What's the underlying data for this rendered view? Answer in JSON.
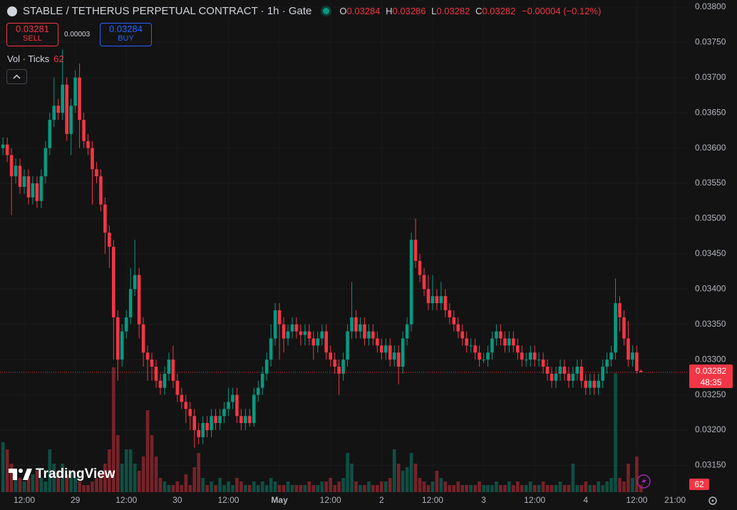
{
  "header": {
    "title": "STABLE / TETHERUS PERPETUAL CONTRACT · 1h · Gate",
    "ohlc_labels": [
      "O",
      "H",
      "L",
      "C"
    ],
    "change": "−0.00004 (−0.12%)",
    "sell_price": 0.03281,
    "sell_label": "SELL",
    "spread": 3e-05,
    "buy_price": 0.03284,
    "buy_label": "BUY",
    "indicator": "Vol · Ticks",
    "countdown": "48:35",
    "logo": "TradingView"
  },
  "chart_data": {
    "type": "candlestick",
    "up_color": "#089981",
    "down_color": "#f23645",
    "grid": true,
    "xlim": [
      -0.7,
      161.0
    ],
    "xticks": [
      {
        "value": 5,
        "label": "12:00"
      },
      {
        "value": 17,
        "label": "29"
      },
      {
        "value": 29,
        "label": "12:00"
      },
      {
        "value": 41,
        "label": "30"
      },
      {
        "value": 53,
        "label": "12:00"
      },
      {
        "value": 65,
        "label": "May"
      },
      {
        "value": 77,
        "label": "12:00"
      },
      {
        "value": 89,
        "label": "2"
      },
      {
        "value": 101,
        "label": "12:00"
      },
      {
        "value": 113,
        "label": "3"
      },
      {
        "value": 125,
        "label": "12:00"
      },
      {
        "value": 137,
        "label": "4"
      },
      {
        "value": 149,
        "label": "12:00"
      },
      {
        "value": 158,
        "label": "21:00"
      }
    ],
    "ylim": [
      0.03112,
      0.0381
    ],
    "yticks": [
      {
        "value": 0.038,
        "label": "0.03800"
      },
      {
        "value": 0.0375,
        "label": "0.03750"
      },
      {
        "value": 0.037,
        "label": "0.03700"
      },
      {
        "value": 0.0365,
        "label": "0.03650"
      },
      {
        "value": 0.036,
        "label": "0.03600"
      },
      {
        "value": 0.0355,
        "label": "0.03550"
      },
      {
        "value": 0.035,
        "label": "0.03500"
      },
      {
        "value": 0.0345,
        "label": "0.03450"
      },
      {
        "value": 0.034,
        "label": "0.03400"
      },
      {
        "value": 0.0335,
        "label": "0.03350"
      },
      {
        "value": 0.033,
        "label": "0.03300"
      },
      {
        "value": 0.0325,
        "label": "0.03250"
      },
      {
        "value": 0.032,
        "label": "0.03200"
      },
      {
        "value": 0.0315,
        "label": "0.03150"
      }
    ],
    "open": [
      0.036,
      0.03605,
      0.0359,
      0.0356,
      0.03575,
      0.03545,
      0.0356,
      0.0353,
      0.0355,
      0.03525,
      0.0356,
      0.036,
      0.0364,
      0.0366,
      0.0365,
      0.0369,
      0.0362,
      0.0366,
      0.037,
      0.0364,
      0.0361,
      0.036,
      0.0357,
      0.0356,
      0.0352,
      0.0348,
      0.0346,
      0.0336,
      0.033,
      0.0334,
      0.0336,
      0.034,
      0.0342,
      0.0335,
      0.0331,
      0.033,
      0.0329,
      0.0327,
      0.0326,
      0.0328,
      0.033,
      0.0327,
      0.0325,
      0.0324,
      0.0323,
      0.0322,
      0.032,
      0.0319,
      0.0321,
      0.032,
      0.0322,
      0.0321,
      0.0322,
      0.0323,
      0.0324,
      0.0325,
      0.0322,
      0.0321,
      0.0322,
      0.0321,
      0.0325,
      0.0326,
      0.0328,
      0.033,
      0.0333,
      0.0337,
      0.0335,
      0.0333,
      0.0334,
      0.0335,
      0.0334,
      0.03335,
      0.0334,
      0.0333,
      0.0332,
      0.0333,
      0.0334,
      0.0331,
      0.033,
      0.0329,
      0.0328,
      0.033,
      0.0334,
      0.0336,
      0.0334,
      0.0335,
      0.0333,
      0.0334,
      0.0333,
      0.0332,
      0.0331,
      0.0332,
      0.033,
      0.0331,
      0.0329,
      0.0333,
      0.0335,
      0.0347,
      0.0344,
      0.0342,
      0.034,
      0.0338,
      0.0339,
      0.0338,
      0.0339,
      0.0337,
      0.0336,
      0.0335,
      0.0334,
      0.0333,
      0.0332,
      0.0332,
      0.0331,
      0.033,
      0.033,
      0.0331,
      0.0333,
      0.0334,
      0.0333,
      0.0332,
      0.0333,
      0.0332,
      0.0331,
      0.033,
      0.033,
      0.0331,
      0.033,
      0.033,
      0.0329,
      0.0328,
      0.0327,
      0.0328,
      0.0329,
      0.0328,
      0.0327,
      0.0328,
      0.0329,
      0.0327,
      0.0326,
      0.0327,
      0.0326,
      0.0327,
      0.0329,
      0.033,
      0.0331,
      0.0338,
      0.0336,
      0.0333,
      0.033,
      0.0331,
      0.03284
    ],
    "high": [
      0.03615,
      0.03615,
      0.036,
      0.03585,
      0.03585,
      0.0357,
      0.0357,
      0.0356,
      0.0356,
      0.0357,
      0.0361,
      0.0365,
      0.037,
      0.0367,
      0.0374,
      0.037,
      0.0367,
      0.0371,
      0.0372,
      0.0365,
      0.0362,
      0.0361,
      0.0358,
      0.0357,
      0.0353,
      0.0349,
      0.0347,
      0.0337,
      0.0335,
      0.0337,
      0.0343,
      0.0347,
      0.0343,
      0.0336,
      0.0332,
      0.0331,
      0.033,
      0.0328,
      0.0329,
      0.0331,
      0.0332,
      0.0328,
      0.0326,
      0.0325,
      0.0324,
      0.0323,
      0.0321,
      0.0322,
      0.0322,
      0.0323,
      0.0323,
      0.0323,
      0.0324,
      0.0326,
      0.0326,
      0.0326,
      0.0323,
      0.0323,
      0.0323,
      0.0326,
      0.0327,
      0.0329,
      0.0331,
      0.0335,
      0.0338,
      0.0338,
      0.0336,
      0.0335,
      0.0336,
      0.0336,
      0.0335,
      0.0335,
      0.0335,
      0.0334,
      0.0334,
      0.0335,
      0.0335,
      0.0332,
      0.0331,
      0.033,
      0.0331,
      0.0335,
      0.0341,
      0.0337,
      0.0336,
      0.0336,
      0.0335,
      0.0335,
      0.0334,
      0.0333,
      0.0333,
      0.0333,
      0.0332,
      0.0332,
      0.0334,
      0.0336,
      0.0348,
      0.035,
      0.0345,
      0.0343,
      0.0342,
      0.0342,
      0.034,
      0.0341,
      0.034,
      0.0338,
      0.0337,
      0.0336,
      0.0335,
      0.0334,
      0.0333,
      0.0333,
      0.0332,
      0.0331,
      0.0332,
      0.0334,
      0.0335,
      0.0335,
      0.0334,
      0.0334,
      0.0334,
      0.0333,
      0.0332,
      0.0331,
      0.0332,
      0.0332,
      0.0331,
      0.0331,
      0.033,
      0.0329,
      0.0329,
      0.033,
      0.033,
      0.0329,
      0.0329,
      0.033,
      0.033,
      0.0328,
      0.0328,
      0.0328,
      0.0328,
      0.033,
      0.0331,
      0.0332,
      0.03415,
      0.0339,
      0.0337,
      0.03355,
      0.0332,
      0.0332,
      0.03286
    ],
    "low": [
      0.0359,
      0.0358,
      0.03505,
      0.0355,
      0.03535,
      0.03535,
      0.0352,
      0.0352,
      0.03515,
      0.03515,
      0.0355,
      0.0359,
      0.0363,
      0.0364,
      0.0364,
      0.0361,
      0.0359,
      0.0365,
      0.036,
      0.036,
      0.0359,
      0.0352,
      0.0355,
      0.0351,
      0.0345,
      0.0343,
      0.033,
      0.0327,
      0.0329,
      0.0333,
      0.0335,
      0.0339,
      0.0333,
      0.0329,
      0.0327,
      0.0327,
      0.0326,
      0.0325,
      0.0325,
      0.0327,
      0.0326,
      0.0324,
      0.0323,
      0.0321,
      0.032,
      0.03175,
      0.0318,
      0.0318,
      0.0319,
      0.0319,
      0.032,
      0.032,
      0.0321,
      0.0322,
      0.0323,
      0.0321,
      0.032,
      0.032,
      0.03205,
      0.03205,
      0.0324,
      0.0325,
      0.0327,
      0.0329,
      0.0332,
      0.033,
      0.0331,
      0.0332,
      0.0333,
      0.0333,
      0.0332,
      0.0332,
      0.0332,
      0.033,
      0.0331,
      0.0332,
      0.033,
      0.0329,
      0.0328,
      0.0325,
      0.0327,
      0.0329,
      0.0333,
      0.0333,
      0.0333,
      0.0332,
      0.0332,
      0.0332,
      0.0331,
      0.033,
      0.033,
      0.0329,
      0.0329,
      0.03265,
      0.0328,
      0.0332,
      0.0334,
      0.0343,
      0.0341,
      0.0339,
      0.0337,
      0.0337,
      0.0337,
      0.0337,
      0.0336,
      0.0335,
      0.0334,
      0.0333,
      0.0332,
      0.0331,
      0.0331,
      0.033,
      0.0329,
      0.03295,
      0.0329,
      0.033,
      0.0332,
      0.0332,
      0.0331,
      0.0331,
      0.0331,
      0.033,
      0.0329,
      0.0329,
      0.0329,
      0.0329,
      0.0329,
      0.0328,
      0.0327,
      0.0326,
      0.0326,
      0.0327,
      0.0327,
      0.0326,
      0.0326,
      0.0327,
      0.0326,
      0.0325,
      0.0325,
      0.0325,
      0.0325,
      0.0326,
      0.0328,
      0.0329,
      0.033,
      0.0334,
      0.0332,
      0.0329,
      0.0329,
      0.0328,
      0.03282
    ],
    "close": [
      0.03605,
      0.0359,
      0.0356,
      0.03575,
      0.03545,
      0.0356,
      0.0353,
      0.0355,
      0.03525,
      0.0356,
      0.036,
      0.0364,
      0.0366,
      0.0365,
      0.0369,
      0.0362,
      0.0366,
      0.037,
      0.0364,
      0.0361,
      0.036,
      0.0357,
      0.0356,
      0.0352,
      0.0348,
      0.0346,
      0.0336,
      0.033,
      0.0334,
      0.0336,
      0.034,
      0.0342,
      0.0335,
      0.0331,
      0.033,
      0.0329,
      0.0327,
      0.0326,
      0.0328,
      0.033,
      0.0327,
      0.0325,
      0.0324,
      0.0323,
      0.0322,
      0.032,
      0.0319,
      0.0321,
      0.032,
      0.0322,
      0.0321,
      0.0322,
      0.0323,
      0.0324,
      0.0325,
      0.0322,
      0.0321,
      0.0322,
      0.0321,
      0.0325,
      0.0326,
      0.0328,
      0.033,
      0.0333,
      0.0337,
      0.0335,
      0.0333,
      0.0334,
      0.0335,
      0.0334,
      0.03335,
      0.0334,
      0.0333,
      0.0332,
      0.0333,
      0.0334,
      0.0331,
      0.033,
      0.0329,
      0.0328,
      0.033,
      0.0334,
      0.0336,
      0.0334,
      0.0335,
      0.0333,
      0.0334,
      0.0333,
      0.0332,
      0.0331,
      0.0332,
      0.033,
      0.0331,
      0.0329,
      0.0333,
      0.0335,
      0.0347,
      0.0344,
      0.0342,
      0.034,
      0.0338,
      0.0339,
      0.0338,
      0.0339,
      0.0337,
      0.0336,
      0.0335,
      0.0334,
      0.0333,
      0.0332,
      0.0332,
      0.0331,
      0.033,
      0.033,
      0.0331,
      0.0333,
      0.0334,
      0.0333,
      0.0332,
      0.0333,
      0.0332,
      0.0331,
      0.033,
      0.033,
      0.0331,
      0.033,
      0.033,
      0.0329,
      0.0328,
      0.0327,
      0.0328,
      0.0329,
      0.0328,
      0.0327,
      0.0328,
      0.0329,
      0.0327,
      0.0326,
      0.0327,
      0.0326,
      0.0327,
      0.0329,
      0.033,
      0.0331,
      0.0338,
      0.0336,
      0.0333,
      0.033,
      0.0331,
      0.03284,
      0.03282
    ],
    "volume": [
      420,
      360,
      240,
      180,
      120,
      90,
      120,
      150,
      180,
      120,
      90,
      360,
      240,
      180,
      240,
      150,
      180,
      120,
      90,
      60,
      60,
      90,
      120,
      150,
      240,
      360,
      1050,
      480,
      240,
      360,
      360,
      240,
      180,
      300,
      690,
      480,
      300,
      120,
      90,
      60,
      60,
      90,
      60,
      150,
      60,
      210,
      330,
      120,
      60,
      90,
      60,
      120,
      60,
      90,
      60,
      120,
      90,
      60,
      60,
      90,
      60,
      90,
      60,
      120,
      90,
      60,
      60,
      90,
      60,
      60,
      60,
      60,
      90,
      60,
      60,
      90,
      90,
      120,
      60,
      90,
      120,
      330,
      240,
      90,
      60,
      60,
      90,
      60,
      60,
      90,
      90,
      120,
      360,
      240,
      180,
      210,
      330,
      240,
      120,
      90,
      60,
      90,
      180,
      120,
      90,
      60,
      60,
      90,
      60,
      60,
      60,
      60,
      90,
      60,
      60,
      60,
      90,
      60,
      60,
      90,
      60,
      90,
      60,
      60,
      90,
      60,
      60,
      90,
      60,
      60,
      60,
      90,
      60,
      60,
      240,
      60,
      60,
      90,
      60,
      60,
      90,
      60,
      90,
      120,
      1000,
      120,
      90,
      240,
      120,
      300,
      62
    ]
  }
}
